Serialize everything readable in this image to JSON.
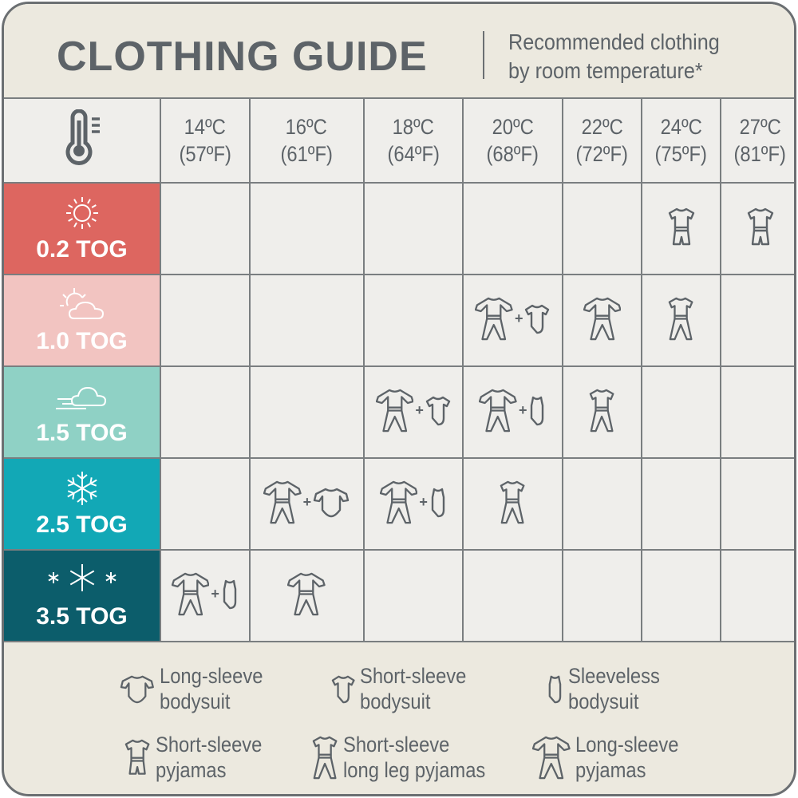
{
  "header": {
    "title": "CLOTHING GUIDE",
    "subtitle_line1": "Recommended clothing",
    "subtitle_line2": "by room temperature*"
  },
  "temperatures": [
    {
      "c": "14ºC",
      "f": "(57ºF)"
    },
    {
      "c": "16ºC",
      "f": "(61ºF)"
    },
    {
      "c": "18ºC",
      "f": "(64ºF)"
    },
    {
      "c": "20ºC",
      "f": "(68ºF)"
    },
    {
      "c": "22ºC",
      "f": "(72ºF)"
    },
    {
      "c": "24ºC",
      "f": "(75ºF)"
    },
    {
      "c": "27ºC",
      "f": "(81ºF)"
    }
  ],
  "header_icon": "thermometer-icon",
  "rows": [
    {
      "label": "0.2 TOG",
      "icon": "sun",
      "color": "#dd6660",
      "cells": [
        [],
        [],
        [],
        [],
        [],
        [
          "ss-pj"
        ],
        [
          "ss-pj"
        ]
      ]
    },
    {
      "label": "1.0 TOG",
      "icon": "sun-cloud",
      "color": "#f2c4c1",
      "cells": [
        [],
        [],
        [],
        [
          "ls-pj",
          "ss-body"
        ],
        [
          "ls-pj"
        ],
        [
          "ss-ll"
        ],
        []
      ]
    },
    {
      "label": "1.5 TOG",
      "icon": "wind-cloud",
      "color": "#8fd1c5",
      "cells": [
        [],
        [],
        [
          "ls-pj",
          "ss-body"
        ],
        [
          "ls-pj",
          "sl-body"
        ],
        [
          "ss-ll"
        ],
        [],
        []
      ]
    },
    {
      "label": "2.5 TOG",
      "icon": "snowflake",
      "color": "#12a8b6",
      "cells": [
        [],
        [
          "ls-pj",
          "ls-body"
        ],
        [
          "ls-pj",
          "sl-body"
        ],
        [
          "ss-ll"
        ],
        [],
        [],
        []
      ]
    },
    {
      "label": "3.5 TOG",
      "icon": "snowflakes",
      "color": "#0c5d6b",
      "cells": [
        [
          "ls-pj",
          "sl-body"
        ],
        [
          "ls-pj"
        ],
        [],
        [],
        [],
        [],
        []
      ]
    }
  ],
  "legend": [
    {
      "icon": "ls-body",
      "line1": "Long-sleeve",
      "line2": "bodysuit"
    },
    {
      "icon": "ss-body",
      "line1": "Short-sleeve",
      "line2": "bodysuit"
    },
    {
      "icon": "sl-body",
      "line1": "Sleeveless",
      "line2": "bodysuit"
    },
    {
      "icon": "ss-pj",
      "line1": "Short-sleeve",
      "line2": "pyjamas"
    },
    {
      "icon": "ss-ll",
      "line1": "Short-sleeve",
      "line2": "long leg pyjamas"
    },
    {
      "icon": "ls-pj",
      "line1": "Long-sleeve",
      "line2": "pyjamas"
    }
  ]
}
